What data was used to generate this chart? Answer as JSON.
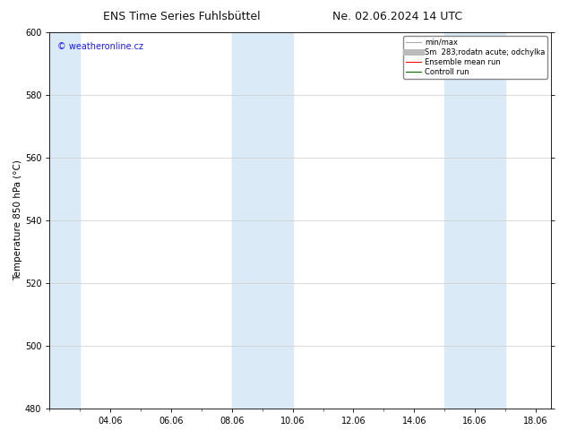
{
  "title_left": "ENS Time Series Fuhlsbüttel",
  "title_right": "Ne. 02.06.2024 14 UTC",
  "ylabel": "Temperature 850 hPa (°C)",
  "watermark": "© weatheronline.cz",
  "watermark_color": "#1a1aff",
  "xtick_labels": [
    "04.06",
    "06.06",
    "08.06",
    "10.06",
    "12.06",
    "14.06",
    "16.06",
    "18.06"
  ],
  "xtick_positions": [
    4,
    6,
    8,
    10,
    12,
    14,
    16,
    18
  ],
  "xlim": [
    2.0,
    18.5
  ],
  "ylim": [
    480,
    600
  ],
  "ytick_positions": [
    480,
    500,
    520,
    540,
    560,
    580,
    600
  ],
  "bg_color": "#ffffff",
  "plot_bg_color": "#ffffff",
  "shaded_band_color": "#daeaf7",
  "shaded_bands": [
    {
      "x_start": 2.0,
      "x_end": 3.0
    },
    {
      "x_start": 8.0,
      "x_end": 10.0
    },
    {
      "x_start": 15.0,
      "x_end": 17.0
    }
  ],
  "legend_entries": [
    {
      "label": "min/max",
      "color": "#aaaaaa",
      "linestyle": "-",
      "linewidth": 0.8
    },
    {
      "label": "Sm  283;rodatn acute; odchylka",
      "color": "#bbbbbb",
      "linestyle": "-",
      "linewidth": 5
    },
    {
      "label": "Ensemble mean run",
      "color": "#ff0000",
      "linestyle": "-",
      "linewidth": 0.8
    },
    {
      "label": "Controll run",
      "color": "#006600",
      "linestyle": "-",
      "linewidth": 0.8
    }
  ],
  "grid_color": "#cccccc",
  "title_fontsize": 9,
  "axis_fontsize": 7.5,
  "tick_fontsize": 7,
  "watermark_fontsize": 7,
  "legend_fontsize": 6
}
